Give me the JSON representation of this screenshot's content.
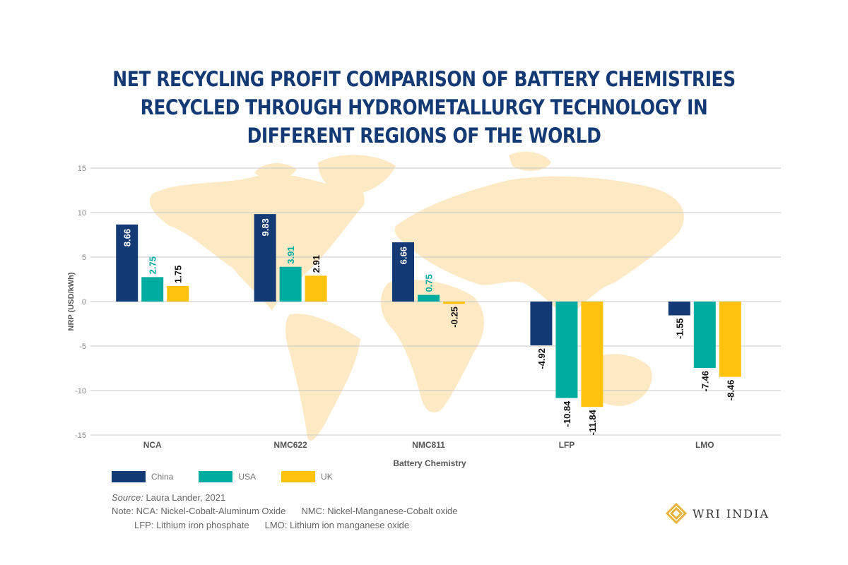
{
  "chart_data": {
    "type": "bar",
    "title": [
      "NET RECYCLING PROFIT COMPARISON OF BATTERY CHEMISTRIES",
      "RECYCLED THROUGH HYDROMETALLURGY TECHNOLOGY IN",
      "DIFFERENT REGIONS OF THE WORLD"
    ],
    "xlabel": "Battery Chemistry",
    "ylabel": "NRP (USD/kWh)",
    "ylim": [
      -15,
      15
    ],
    "yticks": [
      15,
      10,
      5,
      0,
      -5,
      -10,
      -15
    ],
    "grid": true,
    "legend_position": "bottom-left",
    "categories": [
      "NCA",
      "NMC622",
      "NMC811",
      "LFP",
      "LMO"
    ],
    "series": [
      {
        "name": "China",
        "color": "#143a75",
        "values": [
          8.66,
          9.83,
          6.66,
          -4.92,
          -1.55
        ]
      },
      {
        "name": "USA",
        "color": "#00ac9f",
        "values": [
          2.75,
          3.91,
          0.75,
          -10.84,
          -7.46
        ]
      },
      {
        "name": "UK",
        "color": "#ffc20e",
        "values": [
          1.75,
          2.91,
          -0.25,
          -11.84,
          -8.46
        ]
      }
    ]
  },
  "footer": {
    "source_label": "Source:",
    "source": "Laura Lander, 2021",
    "note1": "Note: NCA: Nickel-Cobalt-Aluminum Oxide",
    "note2": "NMC: Nickel-Manganese-Cobalt oxide",
    "note3": "LFP: Lithium iron phosphate",
    "note4": "LMO: Lithium ion manganese oxide"
  },
  "logo": {
    "text": "WRI INDIA",
    "color": "#e8b33a"
  }
}
